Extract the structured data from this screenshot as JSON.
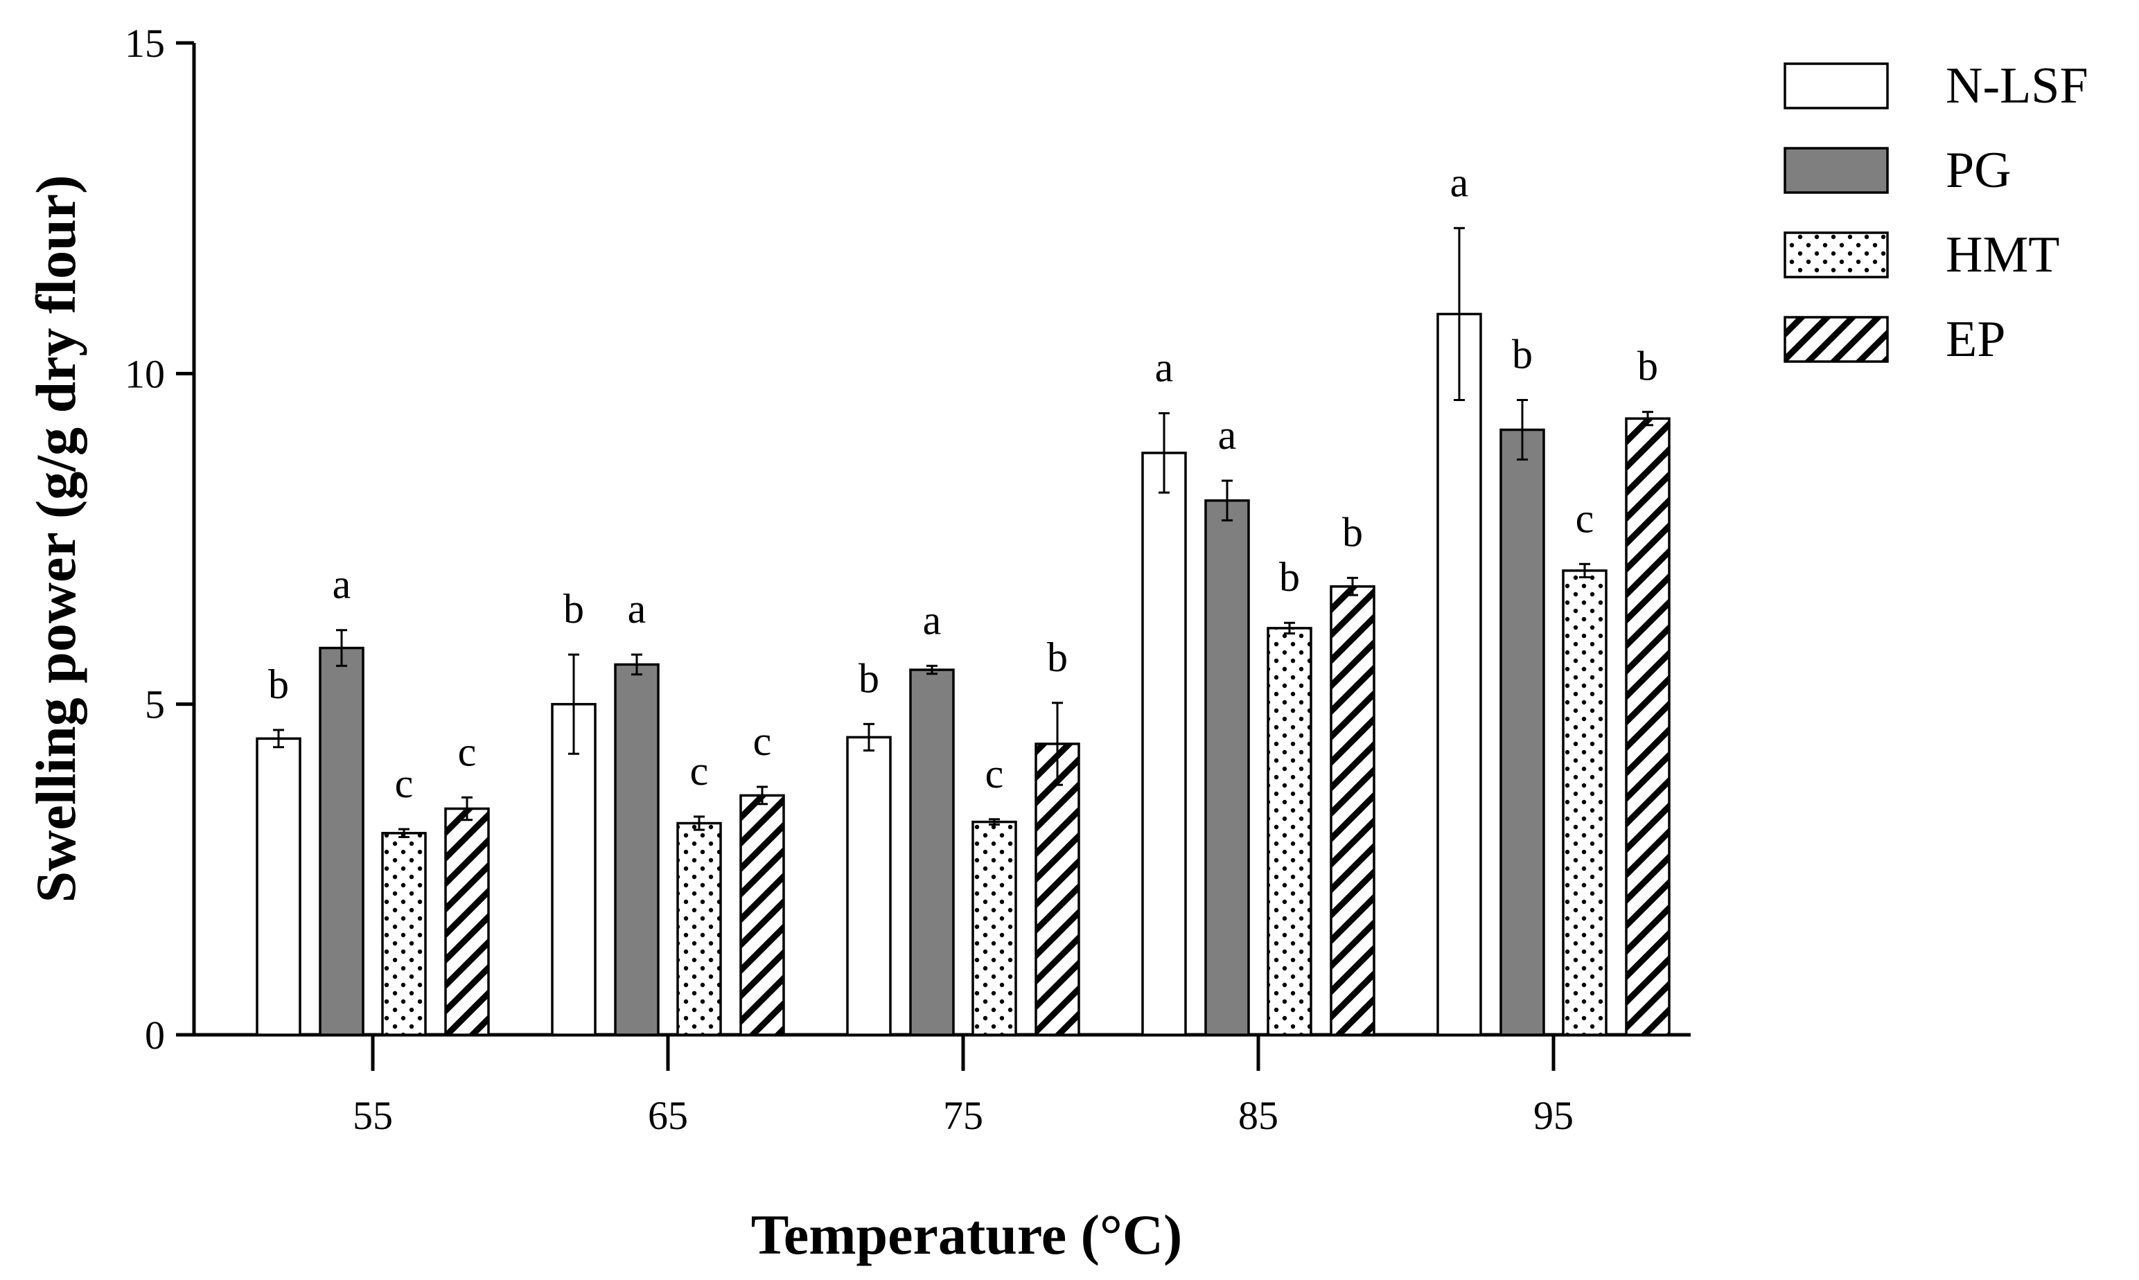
{
  "chart_data": {
    "type": "bar",
    "title": "",
    "xlabel": "Temperature (°C)",
    "ylabel": "Swelling power (g/g dry flour)",
    "ylim": [
      0,
      15
    ],
    "yticks": [
      "0",
      "5",
      "10",
      "15"
    ],
    "categories": [
      "55",
      "65",
      "75",
      "85",
      "95"
    ],
    "legend_position": "top-right",
    "series": [
      {
        "name": "N-LSF",
        "fill": "white",
        "values": [
          4.48,
          5.0,
          4.5,
          8.8,
          10.9
        ],
        "errors": [
          0.13,
          0.75,
          0.2,
          0.6,
          1.3
        ],
        "letters": [
          "b",
          "b",
          "b",
          "a",
          "a"
        ]
      },
      {
        "name": "PG",
        "fill": "gray",
        "values": [
          5.85,
          5.6,
          5.52,
          8.08,
          9.15
        ],
        "errors": [
          0.27,
          0.15,
          0.06,
          0.3,
          0.45
        ],
        "letters": [
          "a",
          "a",
          "a",
          "a",
          "b"
        ]
      },
      {
        "name": "HMT",
        "fill": "dots",
        "values": [
          3.05,
          3.2,
          3.22,
          6.15,
          7.02
        ],
        "errors": [
          0.06,
          0.1,
          0.04,
          0.08,
          0.1
        ],
        "letters": [
          "c",
          "c",
          "c",
          "b",
          "c"
        ]
      },
      {
        "name": "EP",
        "fill": "hatch",
        "values": [
          3.42,
          3.62,
          4.4,
          6.78,
          9.32
        ],
        "errors": [
          0.17,
          0.13,
          0.62,
          0.13,
          0.1
        ],
        "letters": [
          "c",
          "c",
          "b",
          "b",
          "b"
        ]
      }
    ]
  },
  "colors": {
    "pg_fill": "#7f7f7f",
    "stroke": "#000000",
    "background": "#ffffff"
  }
}
